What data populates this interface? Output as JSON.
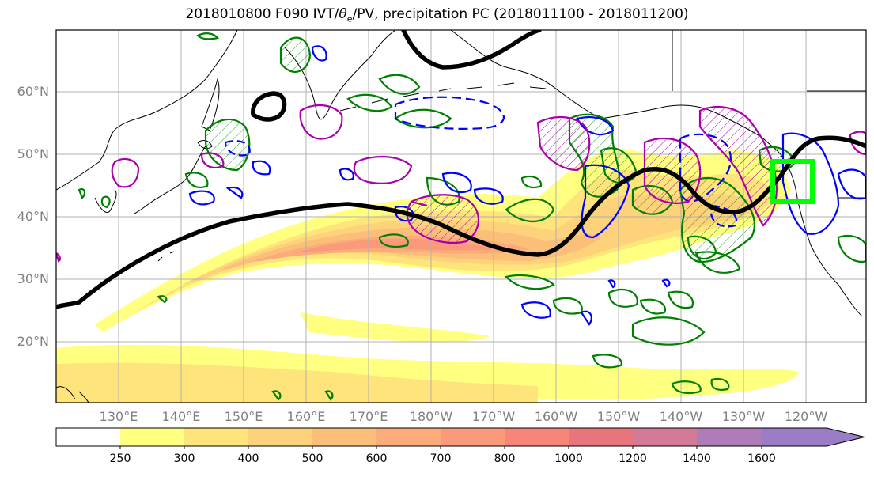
{
  "title": {
    "prefix": "2018010800 F090 IVT/",
    "theta": "θ",
    "sub": "e",
    "suffix": "/PV, precipitation PC (2018011100 - 2018011200)"
  },
  "map": {
    "lat_labels": [
      "60°N",
      "50°N",
      "40°N",
      "30°N",
      "20°N"
    ],
    "lon_labels": [
      "130°E",
      "140°E",
      "150°E",
      "160°E",
      "170°E",
      "180°W",
      "170°W",
      "160°W",
      "150°W",
      "140°W",
      "130°W",
      "120°W"
    ]
  },
  "colorbar": {
    "labels": [
      "250",
      "300",
      "400",
      "500",
      "600",
      "700",
      "800",
      "1000",
      "1200",
      "1400",
      "1600"
    ],
    "colors": [
      "#ffffff",
      "#ffff80",
      "#fee47a",
      "#fdd27a",
      "#fcbf7a",
      "#fcac7a",
      "#fb9a7a",
      "#f8857a",
      "#e8747e",
      "#d27a98",
      "#ae7cb8",
      "#9b7cc6"
    ]
  },
  "legend_colors": {
    "jet_line": "#000000",
    "precip_positive": "#008000",
    "precip_negative": "#0000ff",
    "pv_contour": "#aa00aa",
    "target_box": "#00ff00"
  }
}
